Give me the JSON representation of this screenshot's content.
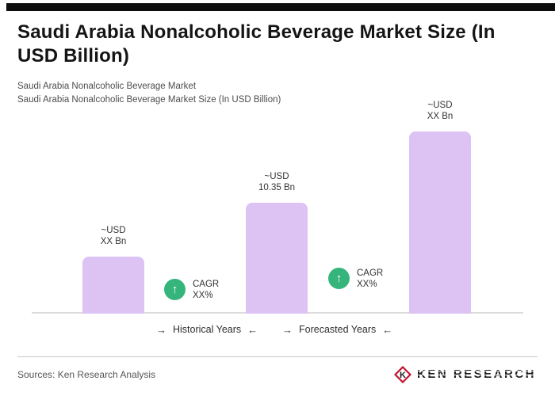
{
  "header": {
    "title": "Saudi Arabia Nonalcoholic Beverage Market Size (In USD Billion)",
    "subtitle_line1": "Saudi Arabia Nonalcoholic Beverage Market",
    "subtitle_line2": "Saudi Arabia Nonalcoholic Beverage Market Size (In USD Billion)"
  },
  "chart_data": {
    "type": "bar",
    "title": "Saudi Arabia Nonalcoholic Beverage Market Size (In USD Billion)",
    "categories": [
      "bar-1",
      "bar-2",
      "bar-3"
    ],
    "values": [
      5.3,
      10.35,
      17.0
    ],
    "value_labels": [
      {
        "line1": "~USD",
        "line2": "XX Bn"
      },
      {
        "line1": "~USD",
        "line2": "10.35 Bn"
      },
      {
        "line1": "~USD",
        "line2": "XX Bn"
      }
    ],
    "annotations": [
      {
        "icon": "up-arrow",
        "glyph": "↑",
        "line1": "CAGR",
        "line2": "XX%"
      },
      {
        "icon": "up-arrow",
        "glyph": "↑",
        "line1": "CAGR",
        "line2": "XX%"
      }
    ],
    "axis_labels": [
      {
        "arrow_before": "→",
        "text": "Historical Years",
        "arrow_after": "←"
      },
      {
        "arrow_before": "→",
        "text": "Forecasted Years",
        "arrow_after": "←"
      }
    ],
    "ylim": [
      0,
      20
    ],
    "grid": false,
    "legend": false
  },
  "colors": {
    "top_bar": "#0d0d0d",
    "bar_lavender": "#dcc3f4",
    "cagr_green": "#35b57b",
    "logo_red": "#c41230",
    "baseline_gray": "#dcdcdc"
  },
  "footer": {
    "sources": "Sources: Ken Research Analysis",
    "logo_text": "KEN RESEARCH",
    "logo_monogram": "K"
  }
}
